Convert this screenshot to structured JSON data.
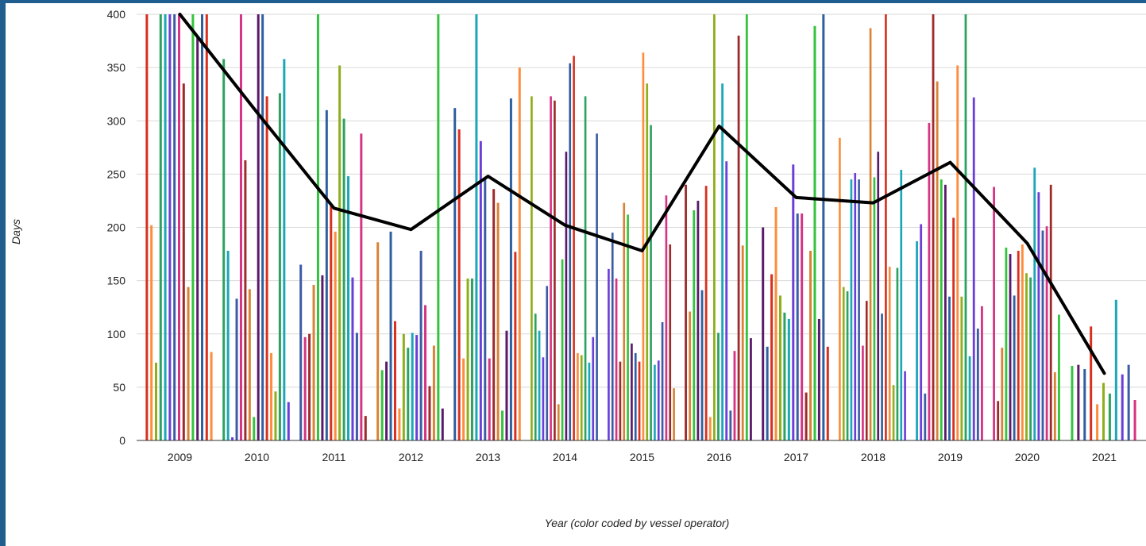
{
  "chart_data": {
    "type": "bar",
    "title": "",
    "xlabel": "Year (color coded by vessel operator)",
    "ylabel": "Days",
    "ylim": [
      0,
      400
    ],
    "y_ticks": [
      0,
      50,
      100,
      150,
      200,
      250,
      300,
      350,
      400
    ],
    "categories": [
      "2009",
      "2010",
      "2011",
      "2012",
      "2013",
      "2014",
      "2015",
      "2016",
      "2017",
      "2018",
      "2019",
      "2020",
      "2021"
    ],
    "grid": "horizontal",
    "palette": [
      "#d7301f",
      "#fd8d3c",
      "#8fae1b",
      "#2ca25f",
      "#1aa7b8",
      "#6a3fd8",
      "#3b5ba5",
      "#d63384",
      "#9e2a2b",
      "#d98236",
      "#33c33c",
      "#5a1a6b",
      "#2e5fa0"
    ],
    "bars": {
      "2009": [
        400,
        202,
        73,
        400,
        400,
        400,
        400,
        400,
        335,
        144,
        400,
        378,
        400,
        400,
        83
      ],
      "2010": [
        358,
        178,
        3,
        133,
        400,
        263,
        142,
        22,
        400,
        400,
        323,
        82,
        46,
        326,
        358,
        36
      ],
      "2011": [
        165,
        97,
        100,
        146,
        400,
        155,
        310,
        220,
        196,
        352,
        302,
        248,
        153,
        101,
        288,
        23
      ],
      "2012": [
        186,
        66,
        74,
        196,
        112,
        30,
        100,
        87,
        101,
        99,
        178,
        127,
        51,
        89,
        400,
        30
      ],
      "2013": [
        312,
        292,
        77,
        152,
        152,
        400,
        281,
        246,
        77,
        236,
        223,
        28,
        103,
        321,
        177,
        350
      ],
      "2014": [
        323,
        119,
        103,
        78,
        145,
        323,
        319,
        34,
        170,
        271,
        354,
        361,
        82,
        80,
        323,
        73,
        97,
        288
      ],
      "2015": [
        161,
        195,
        152,
        74,
        223,
        212,
        91,
        82,
        74,
        364,
        335,
        296,
        71,
        75,
        111,
        230,
        184,
        49
      ],
      "2016": [
        240,
        121,
        216,
        225,
        141,
        239,
        22,
        400,
        101,
        335,
        262,
        28,
        84,
        380,
        183,
        400,
        96
      ],
      "2017": [
        200,
        88,
        156,
        219,
        136,
        120,
        114,
        259,
        213,
        213,
        45,
        178,
        389,
        114,
        400,
        88
      ],
      "2018": [
        284,
        144,
        140,
        245,
        251,
        245,
        89,
        131,
        387,
        247,
        271,
        119,
        400,
        163,
        52,
        162,
        254,
        65
      ],
      "2019": [
        187,
        203,
        44,
        298,
        400,
        337,
        245,
        240,
        135,
        209,
        352,
        135,
        400,
        79,
        322,
        105,
        126
      ],
      "2020": [
        238,
        37,
        87,
        181,
        175,
        136,
        178,
        184,
        157,
        153,
        256,
        233,
        197,
        201,
        240,
        64,
        118
      ],
      "2021": [
        70,
        71,
        67,
        107,
        34,
        54,
        44,
        132,
        62,
        71,
        38
      ]
    },
    "series": [
      {
        "name": "",
        "type": "line",
        "values": [
          400,
          308,
          218,
          198,
          248,
          202,
          178,
          295,
          228,
          223,
          261,
          185,
          63
        ]
      }
    ]
  }
}
